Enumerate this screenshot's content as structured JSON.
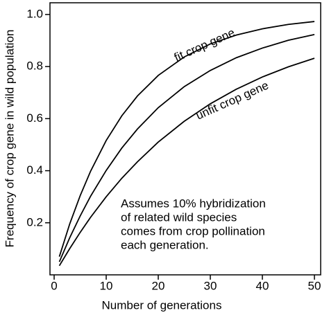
{
  "chart_data": {
    "type": "line",
    "x_label": "Number of generations",
    "y_label": "Frequency of crop gene in wild population",
    "x": [
      1,
      3,
      5,
      7,
      10,
      13,
      16,
      20,
      25,
      30,
      35,
      40,
      45,
      50
    ],
    "series": [
      {
        "name": "fit crop gene",
        "color": "#000000",
        "values": [
          0.07,
          0.196,
          0.304,
          0.398,
          0.516,
          0.611,
          0.687,
          0.766,
          0.837,
          0.887,
          0.921,
          0.945,
          0.962,
          0.973
        ]
      },
      {
        "color": "#000000",
        "values": [
          0.05,
          0.143,
          0.226,
          0.302,
          0.401,
          0.487,
          0.56,
          0.642,
          0.723,
          0.785,
          0.834,
          0.871,
          0.901,
          0.923
        ]
      },
      {
        "name": "unfit crop gene",
        "color": "#000000",
        "values": [
          0.035,
          0.101,
          0.163,
          0.221,
          0.3,
          0.371,
          0.434,
          0.51,
          0.59,
          0.657,
          0.713,
          0.76,
          0.799,
          0.832
        ]
      }
    ],
    "annotation": [
      "Assumes 10% hybridization",
      "of related wild species",
      "comes from crop pollination",
      "each generation."
    ],
    "xlim": [
      -0.8,
      51.2
    ],
    "ylim": [
      0,
      1.045
    ],
    "xticks": [
      0,
      10,
      20,
      30,
      40,
      50
    ],
    "yticks": [
      0.2,
      0.4,
      0.6,
      0.8,
      {
        "value": 1.0,
        "label": "1.0"
      }
    ]
  }
}
